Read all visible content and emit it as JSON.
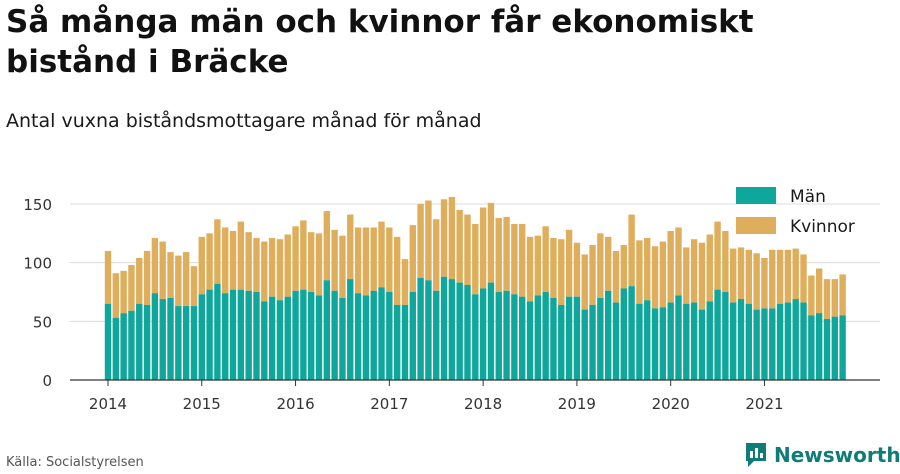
{
  "header": {
    "title": "Så många män och kvinnor får ekonomiskt bistånd i Bräcke",
    "subtitle": "Antal vuxna biståndsmottagare månad för månad"
  },
  "footer": {
    "source": "Källa: Socialstyrelsen",
    "brand": "Newsworthy"
  },
  "colors": {
    "men": "#0fa79b",
    "women": "#dfae5c",
    "grid": "#dcdcdc",
    "axis": "#333333",
    "brand": "#0f7c7a"
  },
  "chart_data": {
    "type": "bar",
    "stacked": true,
    "x_start": "2014-01",
    "x_end": "2021-11",
    "x_tick_labels": [
      "2014",
      "2015",
      "2016",
      "2017",
      "2018",
      "2019",
      "2020",
      "2021"
    ],
    "y_ticks": [
      0,
      50,
      100,
      150
    ],
    "ylim": [
      0,
      160
    ],
    "grid": true,
    "legend_position": "top-right",
    "series": [
      {
        "name": "Män",
        "color": "#0fa79b",
        "values": [
          65,
          53,
          57,
          59,
          65,
          64,
          74,
          69,
          70,
          63,
          63,
          63,
          73,
          77,
          82,
          74,
          77,
          77,
          76,
          75,
          67,
          71,
          68,
          71,
          76,
          77,
          75,
          72,
          85,
          76,
          70,
          86,
          74,
          72,
          76,
          79,
          75,
          64,
          64,
          75,
          87,
          85,
          76,
          88,
          86,
          83,
          81,
          73,
          78,
          83,
          75,
          76,
          73,
          71,
          67,
          72,
          75,
          70,
          64,
          71,
          71,
          60,
          64,
          70,
          76,
          66,
          78,
          80,
          65,
          68,
          61,
          62,
          66,
          72,
          65,
          66,
          60,
          67,
          77,
          75,
          66,
          69,
          65,
          60,
          61,
          61,
          65,
          66,
          69,
          66,
          55,
          57,
          52,
          54,
          55
        ],
        "totals": [
          110,
          91,
          93,
          98,
          104,
          110,
          121,
          118,
          109,
          106,
          109,
          97,
          122,
          125,
          137,
          130,
          127,
          135,
          126,
          121,
          118,
          121,
          120,
          124,
          131,
          136,
          126,
          125,
          144,
          128,
          123,
          141,
          130,
          130,
          130,
          135,
          130,
          122,
          103,
          132,
          150,
          153,
          137,
          154,
          156,
          145,
          141,
          133,
          147,
          151,
          138,
          139,
          133,
          133,
          122,
          123,
          131,
          121,
          120,
          128,
          117,
          107,
          115,
          125,
          122,
          110,
          115,
          141,
          119,
          121,
          114,
          118,
          127,
          130,
          113,
          120,
          117,
          124,
          135,
          127,
          112,
          113,
          111,
          108,
          104,
          111,
          111,
          111,
          112,
          107,
          89,
          95,
          86,
          86,
          90
        ]
      },
      {
        "name": "Kvinnor",
        "color": "#dfae5c"
      }
    ]
  }
}
